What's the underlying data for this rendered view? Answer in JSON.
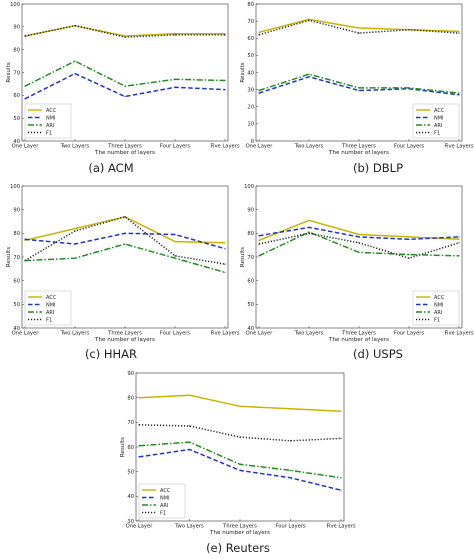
{
  "chart_data": [
    {
      "id": "acm",
      "type": "line",
      "caption": "(a)  ACM",
      "xlabel": "The number of layers",
      "ylabel": "Results",
      "categories": [
        "One Layer",
        "Two Layers",
        "Three Layers",
        "Four Layers",
        "Five Layers"
      ],
      "ylim": [
        40,
        100
      ],
      "yticks": [
        40,
        50,
        60,
        70,
        80,
        90,
        100
      ],
      "legend_position": "lower-left",
      "series": [
        {
          "name": "ACC",
          "values": [
            86,
            90.5,
            86,
            87,
            87
          ]
        },
        {
          "name": "NMI",
          "values": [
            58.5,
            69.5,
            59.5,
            63.5,
            62.5
          ]
        },
        {
          "name": "ARI",
          "values": [
            64,
            75,
            64,
            67,
            66.5
          ]
        },
        {
          "name": "F1",
          "values": [
            86,
            90.5,
            85.5,
            86.5,
            86.5
          ]
        }
      ]
    },
    {
      "id": "dblp",
      "type": "line",
      "caption": "(b)  DBLP",
      "xlabel": "The number of layers",
      "ylabel": "Results",
      "categories": [
        "One Layer",
        "Two Layers",
        "Three Layers",
        "Four Layers",
        "Five Layers"
      ],
      "ylim": [
        0,
        80
      ],
      "yticks": [
        0,
        10,
        20,
        30,
        40,
        50,
        60,
        70,
        80
      ],
      "legend_position": "lower-right",
      "series": [
        {
          "name": "ACC",
          "values": [
            63.5,
            71,
            66,
            65,
            64
          ]
        },
        {
          "name": "NMI",
          "values": [
            28,
            37.5,
            29.5,
            30.5,
            27
          ]
        },
        {
          "name": "ARI",
          "values": [
            29.5,
            39,
            31,
            31,
            28
          ]
        },
        {
          "name": "F1",
          "values": [
            62,
            70.5,
            63,
            65,
            63
          ]
        }
      ]
    },
    {
      "id": "hhar",
      "type": "line",
      "caption": "(c)  HHAR",
      "xlabel": "The number of layers",
      "ylabel": "Results",
      "categories": [
        "One Layer",
        "Two Layers",
        "Three Layers",
        "Four Layers",
        "Five Layers"
      ],
      "ylim": [
        40,
        100
      ],
      "yticks": [
        40,
        50,
        60,
        70,
        80,
        90,
        100
      ],
      "legend_position": "lower-left",
      "series": [
        {
          "name": "ACC",
          "values": [
            77,
            82,
            87,
            76.5,
            76
          ]
        },
        {
          "name": "NMI",
          "values": [
            77.5,
            75.5,
            80,
            79.5,
            73.5
          ]
        },
        {
          "name": "ARI",
          "values": [
            68.5,
            69.5,
            75.5,
            69.5,
            63.5
          ]
        },
        {
          "name": "F1",
          "values": [
            68.5,
            81,
            87,
            70.5,
            67
          ]
        }
      ]
    },
    {
      "id": "usps",
      "type": "line",
      "caption": "(d)  USPS",
      "xlabel": "The number of layers",
      "ylabel": "Results",
      "categories": [
        "One Layer",
        "Two Layers",
        "Three Layers",
        "Four Layers",
        "Five Layers"
      ],
      "ylim": [
        40,
        100
      ],
      "yticks": [
        40,
        50,
        60,
        70,
        80,
        90,
        100
      ],
      "legend_position": "lower-right",
      "series": [
        {
          "name": "ACC",
          "values": [
            77,
            85.5,
            79.5,
            78.5,
            77.5
          ]
        },
        {
          "name": "NMI",
          "values": [
            79,
            82.5,
            78.5,
            77.5,
            78.5
          ]
        },
        {
          "name": "ARI",
          "values": [
            70.5,
            80.5,
            72,
            71,
            70.5
          ]
        },
        {
          "name": "F1",
          "values": [
            75.5,
            80,
            76,
            69.5,
            76
          ]
        }
      ]
    },
    {
      "id": "reuters",
      "type": "line",
      "caption": "(e)  Reuters",
      "xlabel": "The number of layers",
      "ylabel": "Results",
      "categories": [
        "One Layer",
        "Two Layers",
        "Three Layers",
        "Four Layers",
        "Five Layers"
      ],
      "ylim": [
        30,
        90
      ],
      "yticks": [
        30,
        40,
        50,
        60,
        70,
        80,
        90
      ],
      "legend_position": "lower-left",
      "series": [
        {
          "name": "ACC",
          "values": [
            80,
            81,
            76.5,
            75.5,
            74.5
          ]
        },
        {
          "name": "NMI",
          "values": [
            56,
            59,
            50.5,
            47.5,
            42.5
          ]
        },
        {
          "name": "ARI",
          "values": [
            60.5,
            62,
            53,
            50.5,
            47.5
          ]
        },
        {
          "name": "F1",
          "values": [
            69,
            68.5,
            64,
            62.5,
            63.5
          ]
        }
      ]
    }
  ],
  "series_styles": {
    "ACC": {
      "color": "#c8b400",
      "dash": "solid"
    },
    "NMI": {
      "color": "#1f35c8",
      "dash": "dashed"
    },
    "ARI": {
      "color": "#238c23",
      "dash": "dashdot"
    },
    "F1": {
      "color": "#222222",
      "dash": "dotted"
    }
  }
}
